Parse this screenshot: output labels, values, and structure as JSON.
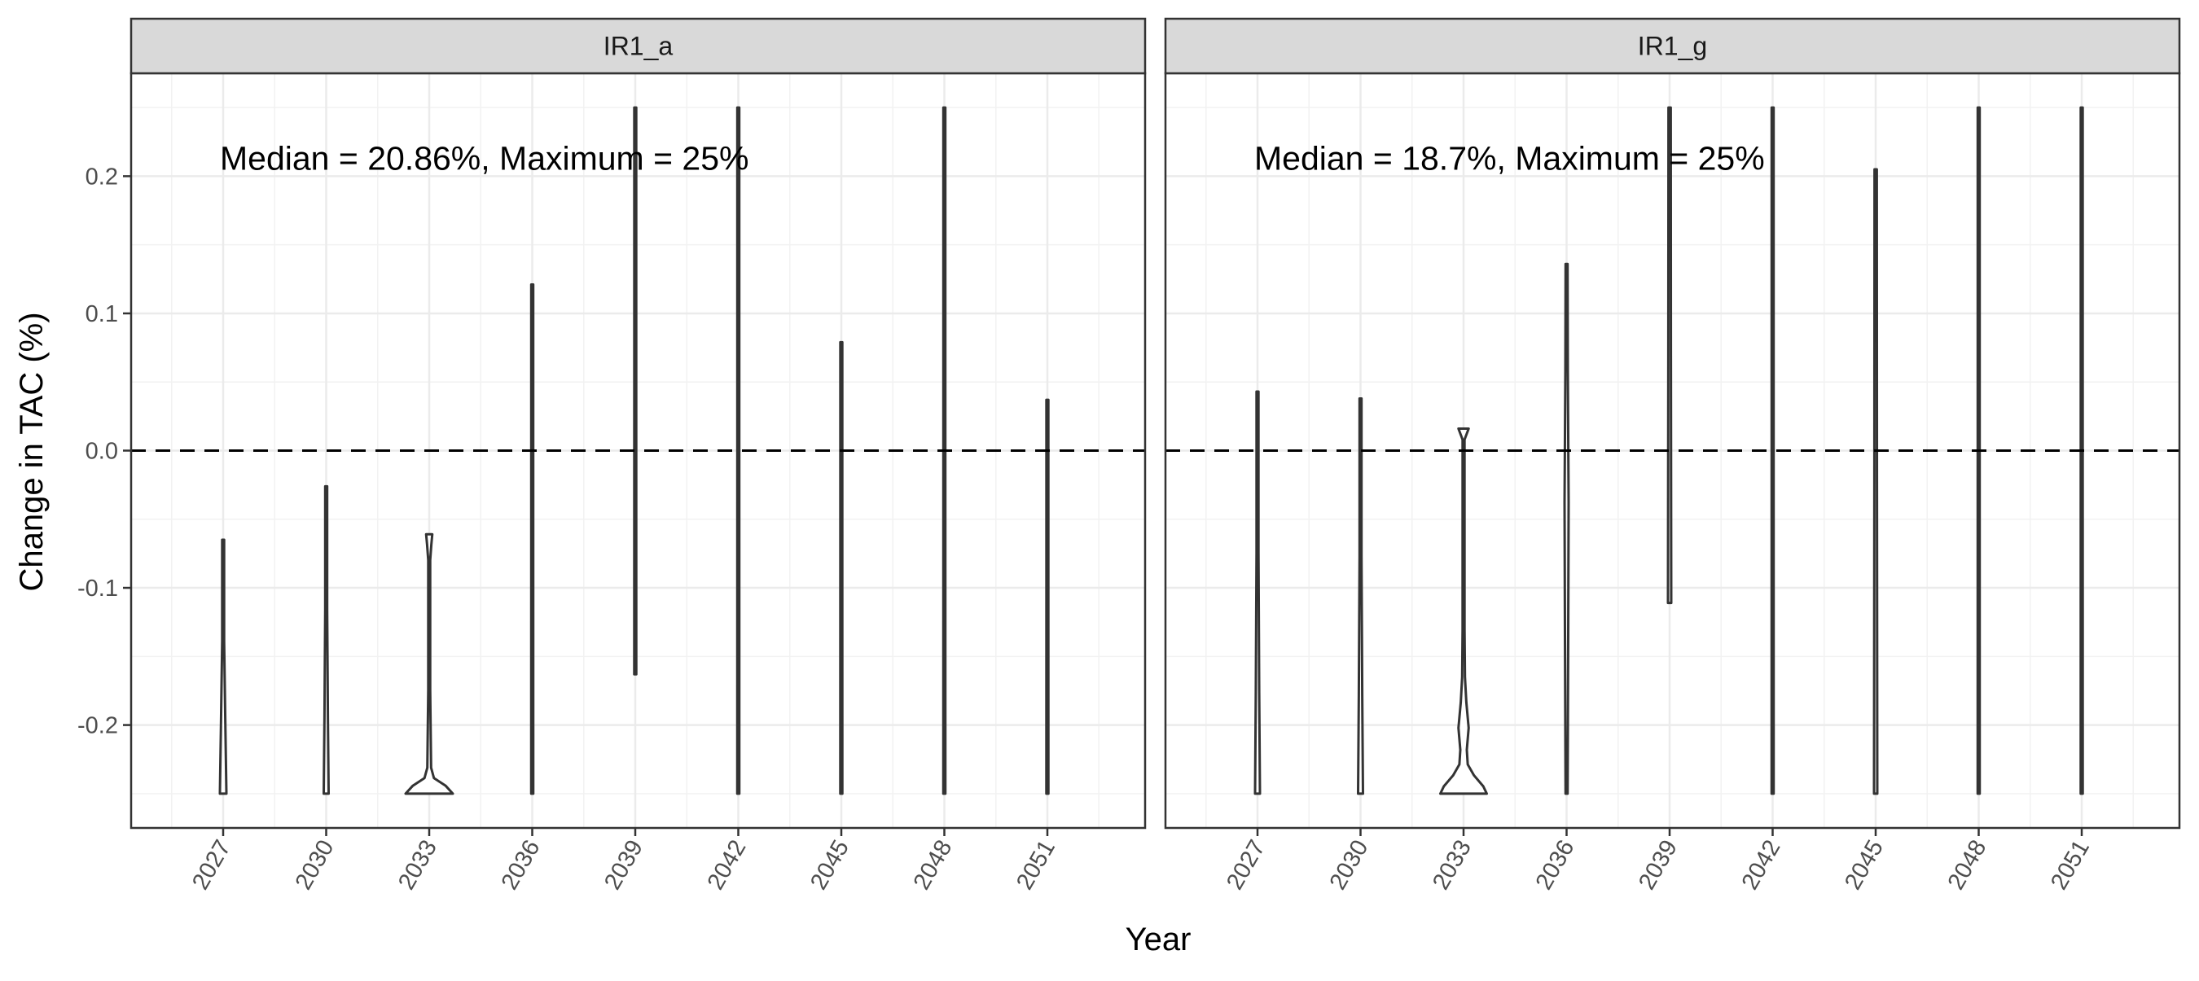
{
  "chart_data": {
    "type": "violin",
    "xlabel": "Year",
    "ylabel": "Change in TAC (%)",
    "x_categories": [
      "2027",
      "2030",
      "2033",
      "2036",
      "2039",
      "2042",
      "2045",
      "2048",
      "2051"
    ],
    "ylim": [
      -0.275,
      0.275
    ],
    "y_ticks": [
      -0.2,
      -0.1,
      0.0,
      0.1,
      0.2
    ],
    "y_tick_labels": [
      "-0.2",
      "-0.1",
      "0.0",
      "0.1",
      "0.2"
    ],
    "reference_line": {
      "y": 0.0,
      "style": "dashed"
    },
    "grid": true,
    "panels": [
      {
        "facet": "IR1_a",
        "annotation": "Median =  20.86%, Maximum = 25%",
        "violins": [
          {
            "year": "2027",
            "min": -0.25,
            "max": -0.065
          },
          {
            "year": "2030",
            "min": -0.25,
            "max": -0.026
          },
          {
            "year": "2033",
            "min": -0.25,
            "max": -0.061
          },
          {
            "year": "2036",
            "min": -0.25,
            "max": 0.121
          },
          {
            "year": "2039",
            "min": -0.163,
            "max": 0.25
          },
          {
            "year": "2042",
            "min": -0.25,
            "max": 0.25
          },
          {
            "year": "2045",
            "min": -0.25,
            "max": 0.079
          },
          {
            "year": "2048",
            "min": -0.25,
            "max": 0.25
          },
          {
            "year": "2051",
            "min": -0.25,
            "max": 0.037
          }
        ]
      },
      {
        "facet": "IR1_g",
        "annotation": "Median =  18.7%, Maximum = 25%",
        "violins": [
          {
            "year": "2027",
            "min": -0.25,
            "max": 0.043
          },
          {
            "year": "2030",
            "min": -0.25,
            "max": 0.038
          },
          {
            "year": "2033",
            "min": -0.25,
            "max": 0.016
          },
          {
            "year": "2036",
            "min": -0.25,
            "max": 0.136
          },
          {
            "year": "2039",
            "min": -0.111,
            "max": 0.25
          },
          {
            "year": "2042",
            "min": -0.25,
            "max": 0.25
          },
          {
            "year": "2045",
            "min": -0.25,
            "max": 0.205
          },
          {
            "year": "2048",
            "min": -0.25,
            "max": 0.25
          },
          {
            "year": "2051",
            "min": -0.25,
            "max": 0.25
          }
        ]
      }
    ]
  }
}
